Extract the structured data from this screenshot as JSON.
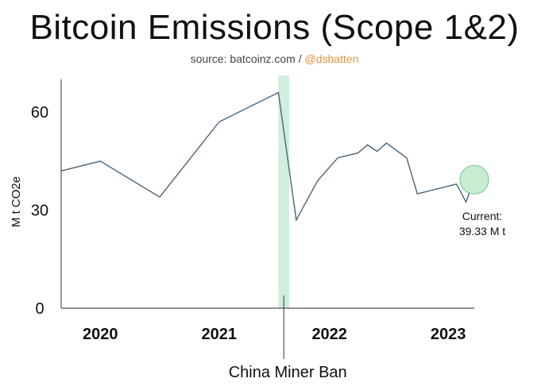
{
  "header": {
    "title": "Bitcoin Emissions (Scope 1&2)",
    "source_prefix": "source: batcoinz.com / ",
    "source_handle": "@dsbatten"
  },
  "colors": {
    "line": "#4a6378",
    "band": "#cfeedd",
    "marker_fill": "#c8ecd2",
    "marker_stroke": "#7fcf95",
    "handle": "#e8923c"
  },
  "chart_data": {
    "type": "line",
    "title": "Bitcoin Emissions (Scope 1&2)",
    "xlabel": "",
    "ylabel": "M t CO2e",
    "ylim": [
      0,
      70
    ],
    "xlim": [
      2019.92,
      2023.4
    ],
    "yticks": [
      0,
      30,
      60
    ],
    "xticks": [
      {
        "label": "2020",
        "value": 2020.25
      },
      {
        "label": "2021",
        "value": 2021.25
      },
      {
        "label": "2022",
        "value": 2022.18
      },
      {
        "label": "2023",
        "value": 2023.18
      }
    ],
    "grid": false,
    "series": [
      {
        "x": [
          2019.92,
          2020.25,
          2020.75,
          2021.25,
          2021.75,
          2021.9,
          2022.08,
          2022.25,
          2022.42,
          2022.5,
          2022.58,
          2022.66,
          2022.83,
          2022.92,
          2023.25,
          2023.33,
          2023.4
        ],
        "values": [
          42,
          45,
          34,
          57,
          66,
          27,
          39,
          46,
          47.5,
          50,
          48,
          50.5,
          46,
          35,
          38,
          32.5,
          39.33
        ]
      }
    ],
    "highlight_band": {
      "x_start": 2021.75,
      "x_end": 2021.84,
      "label": "China Miner Ban"
    },
    "current": {
      "x": 2023.4,
      "value": 39.33,
      "label_line1": "Current:",
      "label_line2": "39.33 M t"
    }
  }
}
